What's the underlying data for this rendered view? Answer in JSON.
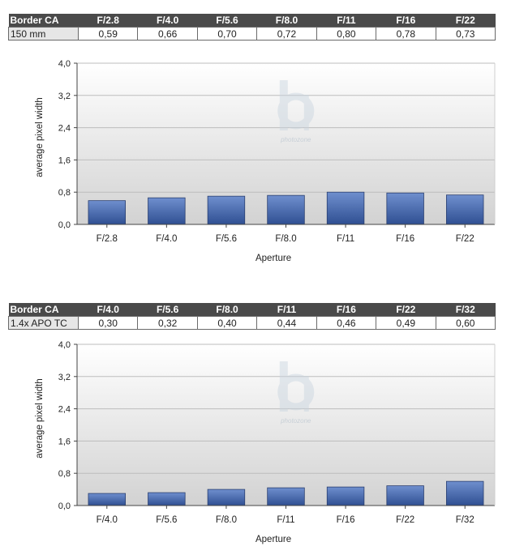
{
  "tables": [
    {
      "header_label": "Border CA",
      "row_label": "150 mm",
      "apertures": [
        "F/2.8",
        "F/4.0",
        "F/5.6",
        "F/8.0",
        "F/11",
        "F/16",
        "F/22"
      ],
      "values": [
        "0,59",
        "0,66",
        "0,70",
        "0,72",
        "0,80",
        "0,78",
        "0,73"
      ]
    },
    {
      "header_label": "Border CA",
      "row_label": "1.4x APO TC",
      "apertures": [
        "F/4.0",
        "F/5.6",
        "F/8.0",
        "F/11",
        "F/16",
        "F/22",
        "F/32"
      ],
      "values": [
        "0,30",
        "0,32",
        "0,40",
        "0,44",
        "0,46",
        "0,49",
        "0,60"
      ]
    }
  ],
  "watermark": "photozone",
  "colors": {
    "bar_top": "#6f8fce",
    "bar_bottom": "#2f4f92",
    "header_bg": "#4a4a4a"
  },
  "chart_data": [
    {
      "type": "bar",
      "categories": [
        "F/2.8",
        "F/4.0",
        "F/5.6",
        "F/8.0",
        "F/11",
        "F/16",
        "F/22"
      ],
      "values": [
        0.59,
        0.66,
        0.7,
        0.72,
        0.8,
        0.78,
        0.73
      ],
      "xlabel": "Aperture",
      "ylabel": "average pixel width",
      "ylim": [
        0,
        4.0
      ],
      "yticks": [
        "0,0",
        "0,8",
        "1,6",
        "2,4",
        "3,2",
        "4,0"
      ],
      "grid": true
    },
    {
      "type": "bar",
      "categories": [
        "F/4.0",
        "F/5.6",
        "F/8.0",
        "F/11",
        "F/16",
        "F/22",
        "F/32"
      ],
      "values": [
        0.3,
        0.32,
        0.4,
        0.44,
        0.46,
        0.49,
        0.6
      ],
      "xlabel": "Aperture",
      "ylabel": "average pixel width",
      "ylim": [
        0,
        4.0
      ],
      "yticks": [
        "0,0",
        "0,8",
        "1,6",
        "2,4",
        "3,2",
        "4,0"
      ],
      "grid": true
    }
  ]
}
